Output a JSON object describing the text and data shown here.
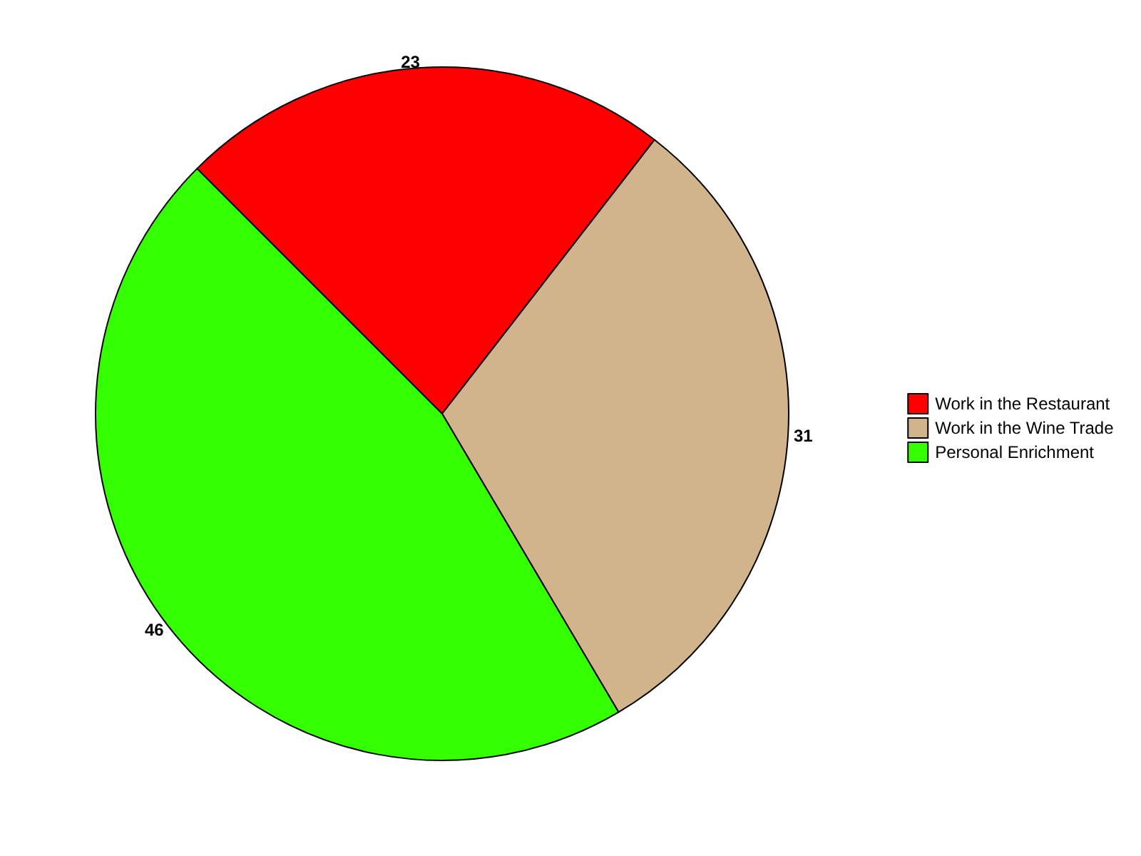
{
  "chart_data": {
    "type": "pie",
    "categories": [
      "Work in the Restaurant",
      "Work in the Wine Trade",
      "Personal Enrichment"
    ],
    "values": [
      23,
      31,
      46
    ],
    "colors": [
      "#ff0000",
      "#d2b48c",
      "#33ff00"
    ],
    "data_labels": true,
    "legend": "right"
  }
}
